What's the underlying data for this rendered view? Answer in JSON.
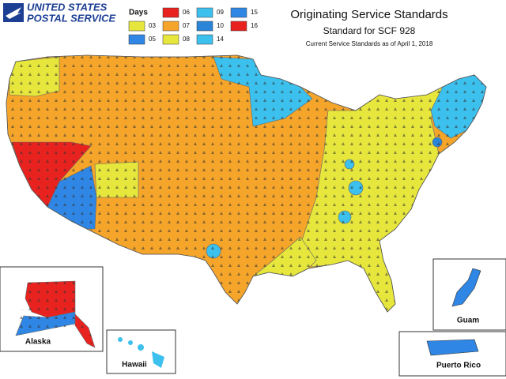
{
  "logo": {
    "line1": "UNITED STATES",
    "line2": "POSTAL SERVICE"
  },
  "legend": {
    "title": "Days",
    "items": [
      {
        "label": "03",
        "color": "#e6e63c"
      },
      {
        "label": "05",
        "color": "#2f86e4"
      },
      {
        "label": "06",
        "color": "#e8231f"
      },
      {
        "label": "07",
        "color": "#f5a52a"
      },
      {
        "label": "08",
        "color": "#e6e63c"
      },
      {
        "label": "09",
        "color": "#3cc0ee"
      },
      {
        "label": "10",
        "color": "#2a84d8"
      },
      {
        "label": "14",
        "color": "#3cc0ee"
      },
      {
        "label": "15",
        "color": "#2f86e4"
      },
      {
        "label": "16",
        "color": "#e8231f"
      }
    ]
  },
  "header": {
    "title": "Originating Service Standards",
    "subtitle": "Standard for SCF 928",
    "note": "Current Service Standards as of April 1, 2018"
  },
  "insets": {
    "alaska": "Alaska",
    "hawaii": "Hawaii",
    "guam": "Guam",
    "puerto_rico": "Puerto Rico"
  }
}
